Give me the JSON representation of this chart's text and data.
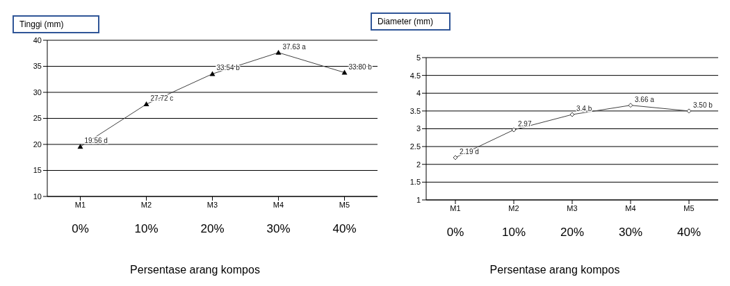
{
  "chart_data": [
    {
      "type": "line",
      "ylabel": "Tinggi (mm)",
      "xlabel": "Persentase arang kompos",
      "categories": [
        "M1",
        "M2",
        "M3",
        "M4",
        "M5"
      ],
      "annotations": [
        "0%",
        "10%",
        "20%",
        "30%",
        "40%"
      ],
      "series": [
        {
          "color": "#404040",
          "values": [
            19.56,
            27.72,
            33.54,
            37.63,
            33.8
          ],
          "value_labels": [
            "19.56 d",
            "27.72 c",
            "33.54 b",
            "37.63 a",
            "33.80 b"
          ]
        }
      ],
      "ylim": [
        10,
        40
      ],
      "yticks": [
        10,
        15,
        20,
        25,
        30,
        35,
        40
      ],
      "grid": "y",
      "marker": "triangle",
      "line_style": "solid",
      "legend": false
    },
    {
      "type": "line",
      "ylabel": "Diameter (mm)",
      "xlabel": "Persentase arang kompos",
      "categories": [
        "M1",
        "M2",
        "M3",
        "M4",
        "M5"
      ],
      "annotations": [
        "0%",
        "10%",
        "20%",
        "30%",
        "40%"
      ],
      "series": [
        {
          "color": "#404040",
          "values": [
            2.19,
            2.97,
            3.4,
            3.66,
            3.5
          ],
          "value_labels": [
            "2.19 d",
            "2.97",
            "3.4 b",
            "3.66 a",
            "3.50 b"
          ]
        }
      ],
      "ylim": [
        1,
        5
      ],
      "yticks": [
        1,
        1.5,
        2,
        2.5,
        3,
        3.5,
        4,
        4.5,
        5
      ],
      "grid": "y",
      "marker": "diamond",
      "line_style": "solid",
      "legend": false
    }
  ]
}
